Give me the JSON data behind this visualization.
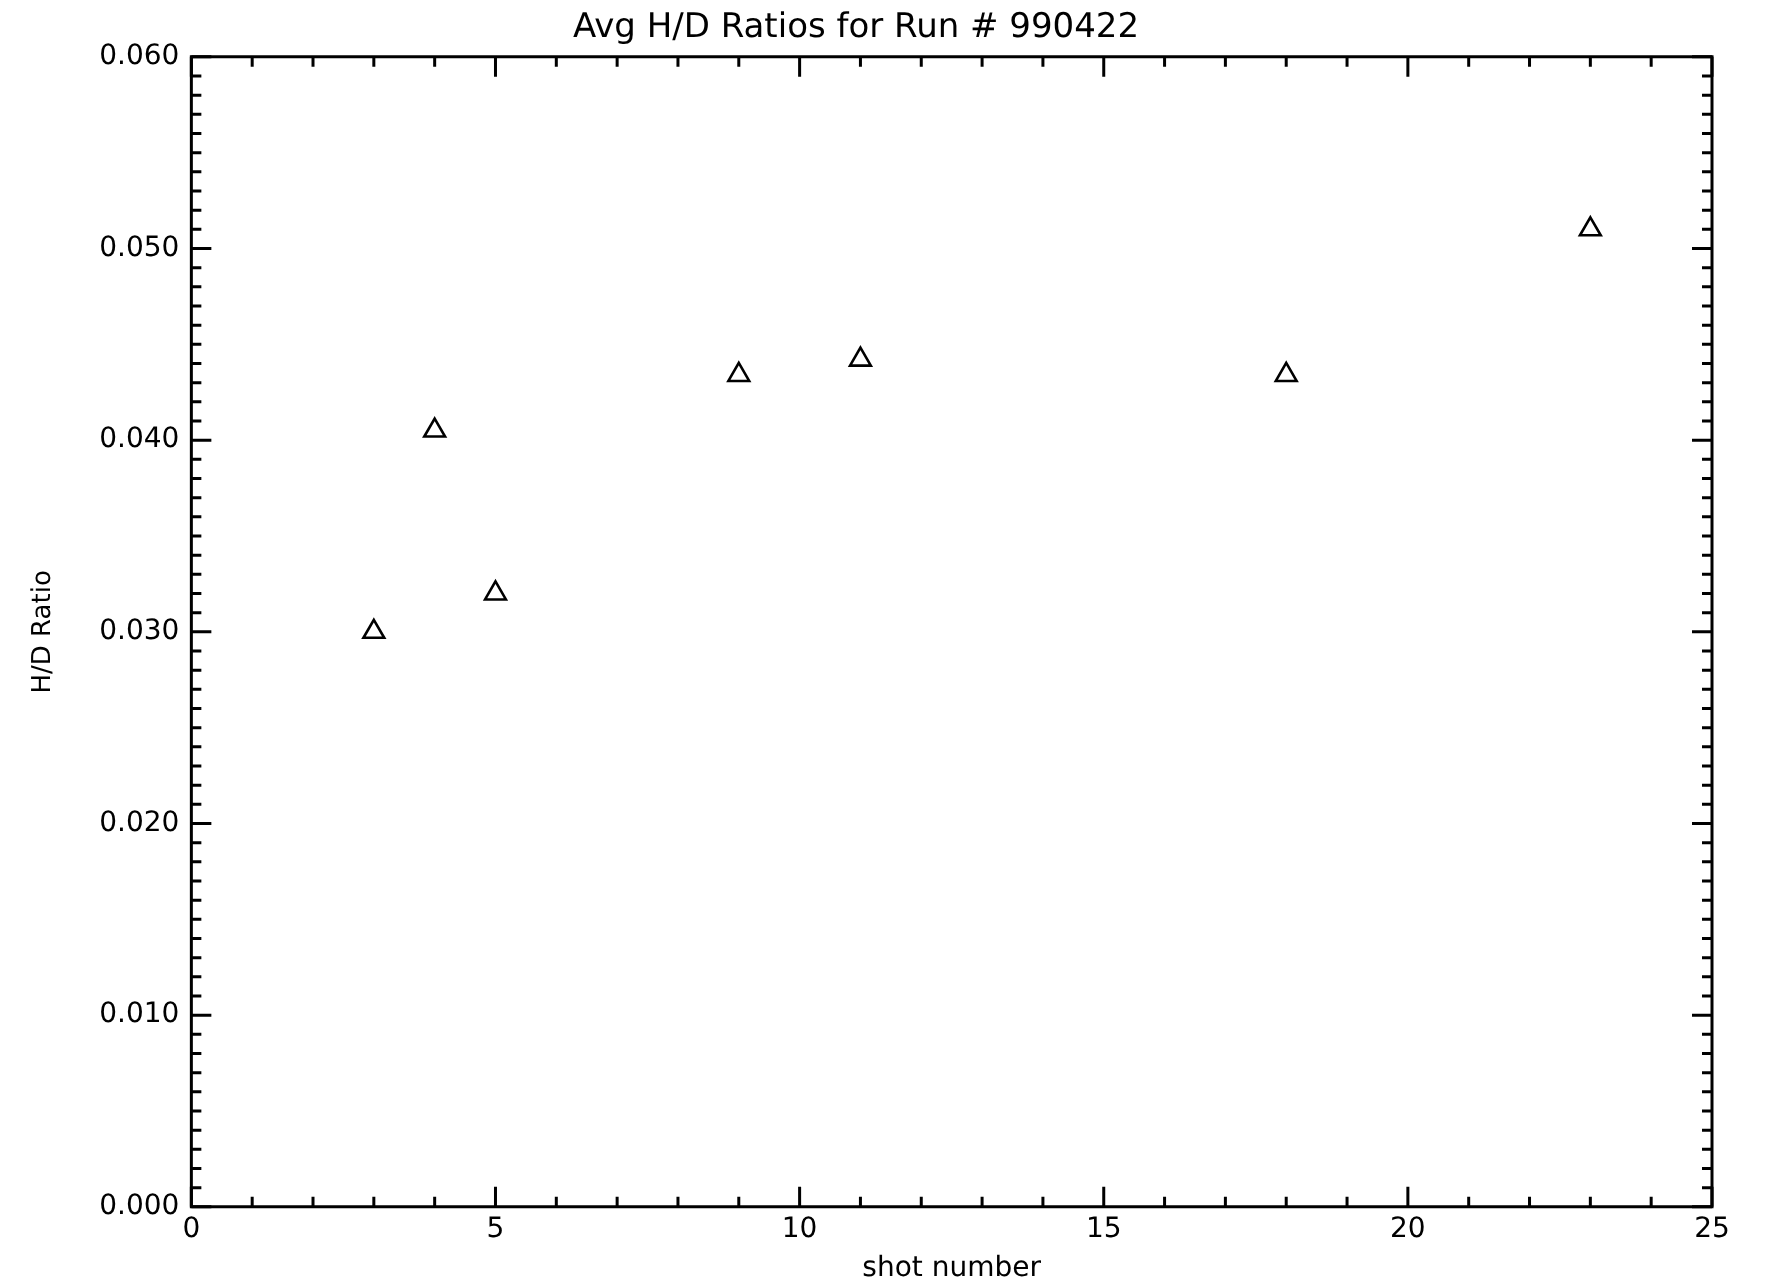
{
  "chart_data": {
    "type": "scatter",
    "title": "Avg H/D Ratios for Run # 990422",
    "xlabel": "shot number",
    "ylabel": "H/D Ratio",
    "x": [
      3,
      4,
      5,
      9,
      11,
      18,
      23
    ],
    "series": [
      {
        "color": "#000000",
        "values": [
          0.03,
          0.0405,
          0.032,
          0.0434,
          0.0442,
          0.0434,
          0.051
        ]
      }
    ],
    "xlim": [
      0,
      25
    ],
    "xticks": [
      0,
      5,
      10,
      15,
      20,
      25
    ],
    "ylim": [
      0,
      0.06
    ],
    "yticks": [
      {
        "value": 0,
        "label": "0.000"
      },
      {
        "value": 0.01,
        "label": "0.010"
      },
      {
        "value": 0.02,
        "label": "0.020"
      },
      {
        "value": 0.03,
        "label": "0.030"
      },
      {
        "value": 0.04,
        "label": "0.040"
      },
      {
        "value": 0.05,
        "label": "0.050"
      },
      {
        "value": 0.06,
        "label": "0.060"
      }
    ],
    "marker": "triangle",
    "grid": false,
    "legend": false
  }
}
